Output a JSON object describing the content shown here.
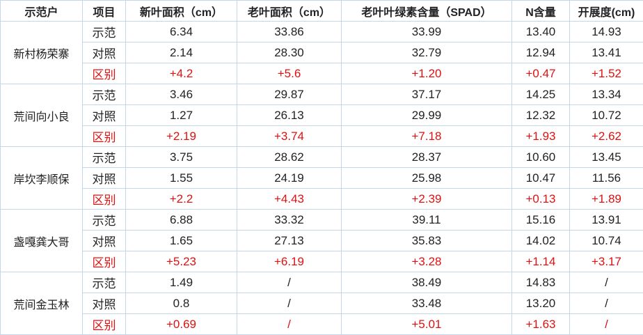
{
  "table": {
    "header": [
      "示范户",
      "项目",
      "新叶面积（cm）",
      "老叶面积（cm）",
      "老叶叶绿素含量（SPAD）",
      "N含量",
      "开展度(cm)"
    ],
    "groups": [
      {
        "name": "新村杨荣寨",
        "rows": [
          [
            "示范",
            "6.34",
            "33.86",
            "33.99",
            "13.40",
            "14.93"
          ],
          [
            "对照",
            "2.14",
            "28.30",
            "32.79",
            "12.94",
            "13.41"
          ],
          [
            "区别",
            "+4.2",
            "+5.6",
            "+1.20",
            "+0.47",
            "+1.52"
          ]
        ]
      },
      {
        "name": "荒间向小良",
        "rows": [
          [
            "示范",
            "3.46",
            "29.87",
            "37.17",
            "14.25",
            "13.34"
          ],
          [
            "对照",
            "1.27",
            "26.13",
            "29.99",
            "12.32",
            "10.72"
          ],
          [
            "区别",
            "+2.19",
            "+3.74",
            "+7.18",
            "+1.93",
            "+2.62"
          ]
        ]
      },
      {
        "name": "岸坎李顺保",
        "rows": [
          [
            "示范",
            "3.75",
            "28.62",
            "28.37",
            "10.60",
            "13.45"
          ],
          [
            "对照",
            "1.55",
            "24.19",
            "25.98",
            "10.47",
            "11.56"
          ],
          [
            "区别",
            "+2.2",
            "+4.43",
            "+2.39",
            "+0.13",
            "+1.89"
          ]
        ]
      },
      {
        "name": "盏嘎龚大哥",
        "rows": [
          [
            "示范",
            "6.88",
            "33.32",
            "39.11",
            "15.16",
            "13.91"
          ],
          [
            "对照",
            "1.65",
            "27.13",
            "35.83",
            "14.02",
            "10.74"
          ],
          [
            "区别",
            "+5.23",
            "+6.19",
            "+3.28",
            "+1.14",
            "+3.17"
          ]
        ]
      },
      {
        "name": "荒间金玉林",
        "rows": [
          [
            "示范",
            "1.49",
            "/",
            "38.49",
            "14.83",
            "/"
          ],
          [
            "对照",
            "0.8",
            "/",
            "33.48",
            "13.20",
            "/"
          ],
          [
            "区别",
            "+0.69",
            "/",
            "+5.01",
            "+1.63",
            "/"
          ]
        ]
      }
    ]
  }
}
